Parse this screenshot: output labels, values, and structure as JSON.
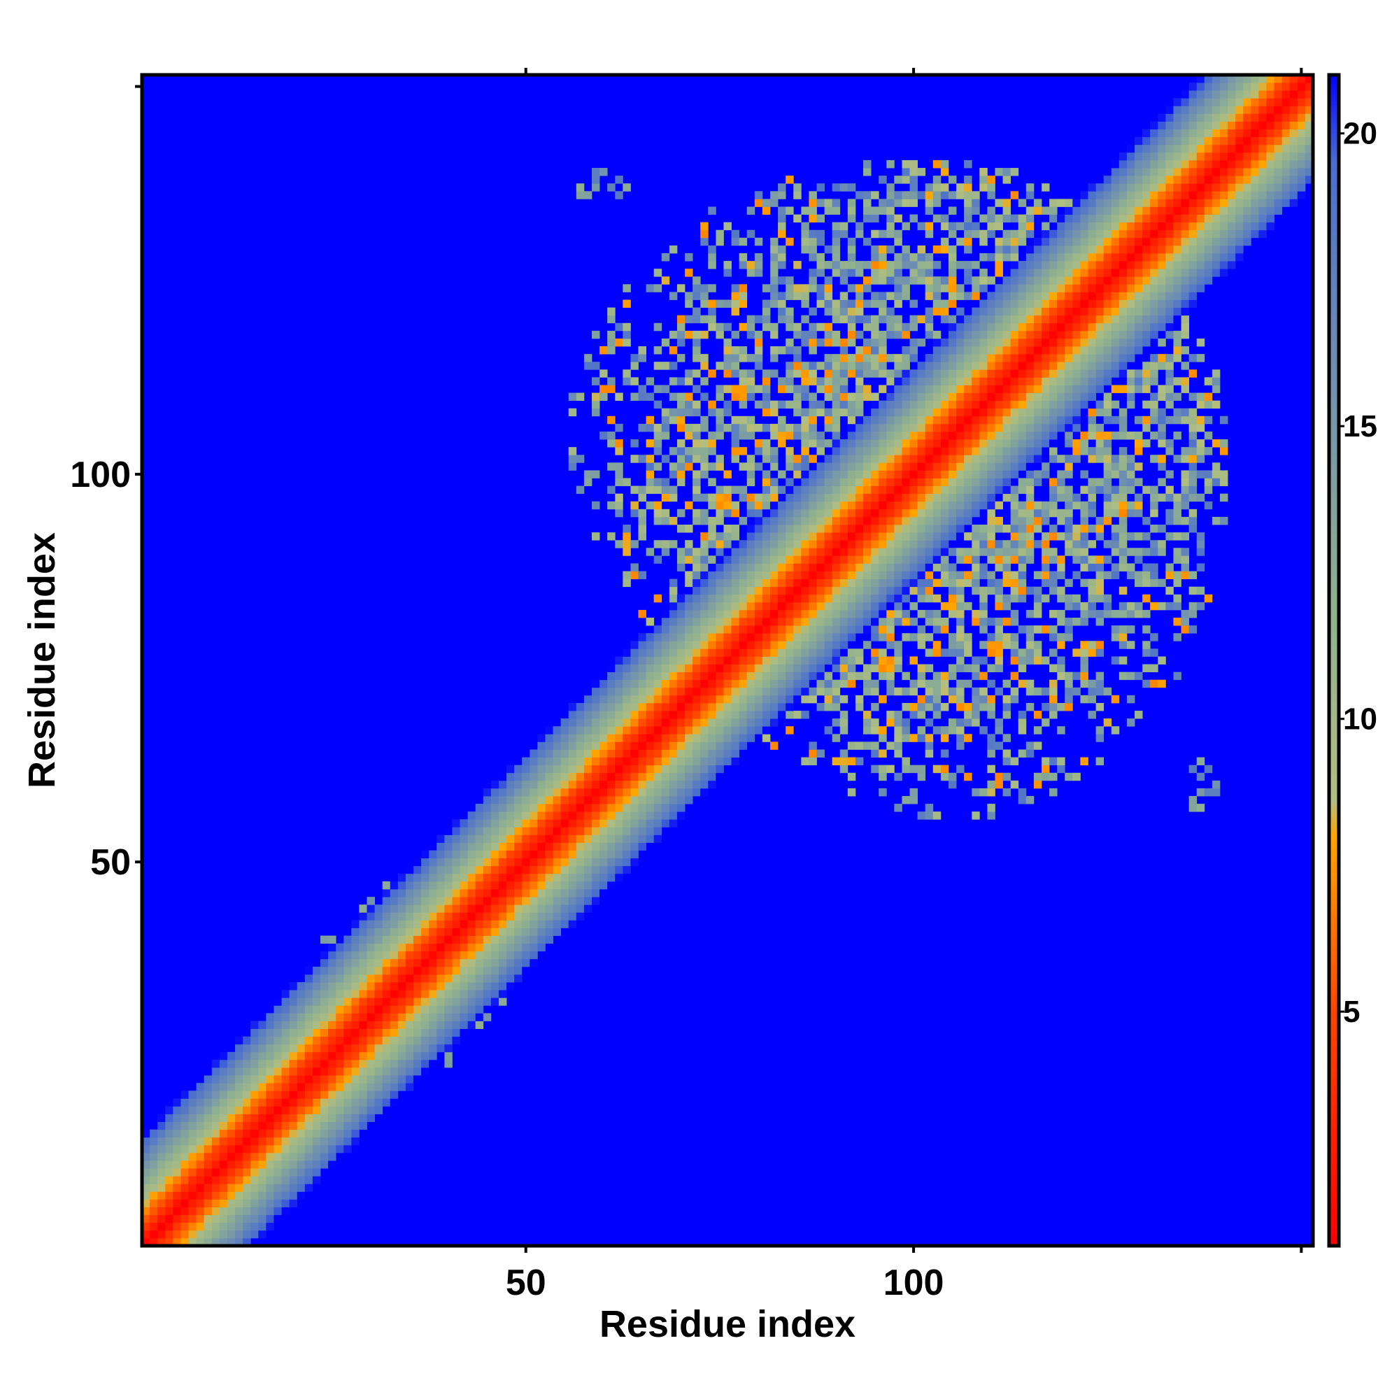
{
  "chart_data": {
    "type": "heatmap",
    "xlabel": "Residue index",
    "ylabel": "Residue index",
    "n_residues": 151,
    "xlim": [
      1,
      151
    ],
    "ylim": [
      1,
      151
    ],
    "x_ticks": [
      50,
      100
    ],
    "y_ticks": [
      50,
      100
    ],
    "x_minor_ticks": [
      50,
      100,
      150
    ],
    "y_minor_ticks": [
      50,
      100,
      150
    ],
    "colorbar": {
      "range": [
        1,
        21
      ],
      "ticks": [
        5,
        10,
        15,
        20
      ],
      "stops": [
        {
          "value": 1,
          "color": "#ff0000"
        },
        {
          "value": 5,
          "color": "#ff4500"
        },
        {
          "value": 8,
          "color": "#ffa500"
        },
        {
          "value": 8.6,
          "color": "#b2bf80"
        },
        {
          "value": 12,
          "color": "#8fb090"
        },
        {
          "value": 16,
          "color": "#6f8fb0"
        },
        {
          "value": 19.5,
          "color": "#4a6ecf"
        },
        {
          "value": 21,
          "color": "#0000ff"
        }
      ]
    },
    "contact_regions": [
      {
        "x_range": [
          56,
          140
        ],
        "y_range": [
          69,
          140
        ],
        "density": 0.55,
        "value_range": [
          7,
          19
        ]
      },
      {
        "x_range": [
          26,
          48
        ],
        "y_range": [
          24,
          46
        ],
        "density": 0.5,
        "value_range": [
          7,
          18
        ]
      },
      {
        "x_range": [
          48,
          62
        ],
        "y_range": [
          50,
          62
        ],
        "density": 0.55,
        "value_range": [
          6,
          18
        ]
      },
      {
        "x_range": [
          134,
          139
        ],
        "y_range": [
          57,
          63
        ],
        "density": 0.4,
        "value_range": [
          12,
          19
        ]
      }
    ],
    "description_values": {
      "diagonal": 1,
      "band_halfwidth_residues": 14,
      "background": 21
    }
  }
}
